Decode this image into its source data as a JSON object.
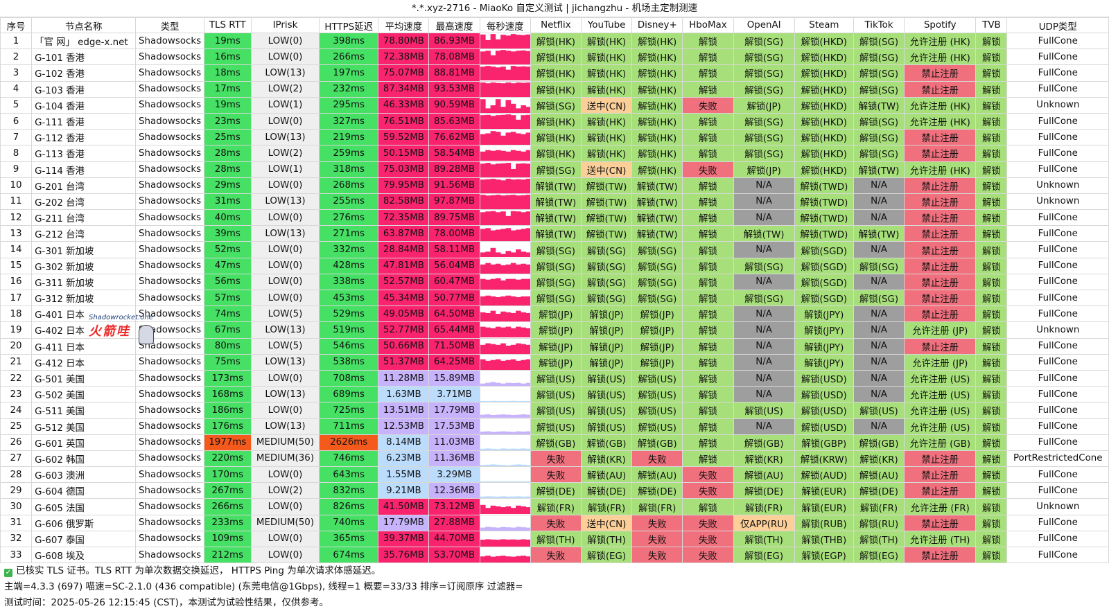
{
  "window": {
    "title": "*.*.xyz-2716 - MiaoKo 自定义测试 | jichangzhu - 机场主定制测速"
  },
  "headers": [
    "序号",
    "节点名称",
    "类型",
    "TLS RTT",
    "IPrisk",
    "HTTPS延迟",
    "平均速度",
    "最高速度",
    "每秒速度",
    "Netflix",
    "YouTube",
    "Disney+",
    "HboMax",
    "OpenAI",
    "Steam",
    "TikTok",
    "Spotify",
    "TVB",
    "UDP类型"
  ],
  "rows": [
    [
      "1",
      "「官 网」 edge-x.net",
      "Shadowsocks",
      "19ms",
      "LOW(0)",
      "398ms",
      "78.80MB",
      "86.93MB",
      "",
      "解锁(HK)",
      "解锁(HK)",
      "解锁(HK)",
      "解锁",
      "解锁(SG)",
      "解锁(HKD)",
      "解锁(SG)",
      "允许注册 (HK)",
      "解锁",
      "FullCone"
    ],
    [
      "2",
      "G-101 香港",
      "Shadowsocks",
      "16ms",
      "LOW(0)",
      "266ms",
      "72.38MB",
      "78.08MB",
      "",
      "解锁(HK)",
      "解锁(HK)",
      "解锁(HK)",
      "解锁",
      "解锁(SG)",
      "解锁(HKD)",
      "解锁(SG)",
      "允许注册 (HK)",
      "解锁",
      "FullCone"
    ],
    [
      "3",
      "G-102 香港",
      "Shadowsocks",
      "18ms",
      "LOW(13)",
      "197ms",
      "75.07MB",
      "88.81MB",
      "",
      "解锁(HK)",
      "解锁(HK)",
      "解锁(HK)",
      "解锁",
      "解锁(SG)",
      "解锁(HKD)",
      "解锁(SG)",
      "禁止注册",
      "解锁",
      "FullCone"
    ],
    [
      "4",
      "G-103 香港",
      "Shadowsocks",
      "17ms",
      "LOW(2)",
      "232ms",
      "87.34MB",
      "93.53MB",
      "",
      "解锁(HK)",
      "解锁(HK)",
      "解锁(HK)",
      "解锁",
      "解锁(SG)",
      "解锁(HKD)",
      "解锁(SG)",
      "禁止注册",
      "解锁",
      "FullCone"
    ],
    [
      "5",
      "G-104 香港",
      "Shadowsocks",
      "19ms",
      "LOW(1)",
      "295ms",
      "46.33MB",
      "90.59MB",
      "",
      "解锁(SG)",
      "送中(CN)",
      "解锁(HK)",
      "失败",
      "解锁(JP)",
      "解锁(HKD)",
      "解锁(TW)",
      "允许注册 (HK)",
      "解锁",
      "Unknown"
    ],
    [
      "6",
      "G-111 香港",
      "Shadowsocks",
      "23ms",
      "LOW(0)",
      "327ms",
      "76.51MB",
      "85.63MB",
      "",
      "解锁(HK)",
      "解锁(HK)",
      "解锁(HK)",
      "解锁",
      "解锁(SG)",
      "解锁(HKD)",
      "解锁(SG)",
      "允许注册 (HK)",
      "解锁",
      "FullCone"
    ],
    [
      "7",
      "G-112 香港",
      "Shadowsocks",
      "25ms",
      "LOW(13)",
      "219ms",
      "59.52MB",
      "76.62MB",
      "",
      "解锁(HK)",
      "解锁(HK)",
      "解锁(HK)",
      "解锁",
      "解锁(SG)",
      "解锁(HKD)",
      "解锁(SG)",
      "禁止注册",
      "解锁",
      "FullCone"
    ],
    [
      "8",
      "G-113 香港",
      "Shadowsocks",
      "28ms",
      "LOW(2)",
      "259ms",
      "50.15MB",
      "58.54MB",
      "",
      "解锁(HK)",
      "解锁(HK)",
      "解锁(HK)",
      "解锁",
      "解锁(SG)",
      "解锁(HKD)",
      "解锁(SG)",
      "禁止注册",
      "解锁",
      "FullCone"
    ],
    [
      "9",
      "G-114 香港",
      "Shadowsocks",
      "28ms",
      "LOW(1)",
      "318ms",
      "75.03MB",
      "89.28MB",
      "",
      "解锁(SG)",
      "送中(CN)",
      "解锁(HK)",
      "失败",
      "解锁(JP)",
      "解锁(HKD)",
      "解锁(TW)",
      "允许注册 (HK)",
      "解锁",
      "FullCone"
    ],
    [
      "10",
      "G-201 台湾",
      "Shadowsocks",
      "29ms",
      "LOW(0)",
      "268ms",
      "79.95MB",
      "91.56MB",
      "",
      "解锁(TW)",
      "解锁(TW)",
      "解锁(TW)",
      "解锁",
      "N/A",
      "解锁(TWD)",
      "N/A",
      "禁止注册",
      "解锁",
      "Unknown"
    ],
    [
      "11",
      "G-202 台湾",
      "Shadowsocks",
      "31ms",
      "LOW(13)",
      "255ms",
      "82.58MB",
      "97.87MB",
      "",
      "解锁(TW)",
      "解锁(TW)",
      "解锁(TW)",
      "解锁",
      "N/A",
      "解锁(TWD)",
      "N/A",
      "禁止注册",
      "解锁",
      "Unknown"
    ],
    [
      "12",
      "G-211 台湾",
      "Shadowsocks",
      "40ms",
      "LOW(0)",
      "276ms",
      "72.35MB",
      "89.75MB",
      "",
      "解锁(TW)",
      "解锁(TW)",
      "解锁(TW)",
      "解锁",
      "N/A",
      "解锁(TWD)",
      "N/A",
      "禁止注册",
      "解锁",
      "FullCone"
    ],
    [
      "13",
      "G-212 台湾",
      "Shadowsocks",
      "39ms",
      "LOW(13)",
      "271ms",
      "63.87MB",
      "78.00MB",
      "",
      "解锁(TW)",
      "解锁(TW)",
      "解锁(TW)",
      "解锁",
      "解锁(TW)",
      "解锁(TWD)",
      "解锁(TW)",
      "禁止注册",
      "解锁",
      "FullCone"
    ],
    [
      "14",
      "G-301 新加坡",
      "Shadowsocks",
      "52ms",
      "LOW(0)",
      "332ms",
      "28.84MB",
      "58.11MB",
      "",
      "解锁(SG)",
      "解锁(SG)",
      "解锁(SG)",
      "解锁",
      "N/A",
      "解锁(SGD)",
      "N/A",
      "禁止注册",
      "解锁",
      "FullCone"
    ],
    [
      "15",
      "G-302 新加坡",
      "Shadowsocks",
      "47ms",
      "LOW(0)",
      "428ms",
      "47.81MB",
      "56.04MB",
      "",
      "解锁(SG)",
      "解锁(SG)",
      "解锁(SG)",
      "解锁",
      "解锁(SG)",
      "解锁(SGD)",
      "解锁(SG)",
      "禁止注册",
      "解锁",
      "FullCone"
    ],
    [
      "16",
      "G-311 新加坡",
      "Shadowsocks",
      "56ms",
      "LOW(0)",
      "338ms",
      "52.57MB",
      "60.47MB",
      "",
      "解锁(SG)",
      "解锁(SG)",
      "解锁(SG)",
      "解锁",
      "N/A",
      "解锁(SGD)",
      "N/A",
      "禁止注册",
      "解锁",
      "FullCone"
    ],
    [
      "17",
      "G-312 新加坡",
      "Shadowsocks",
      "57ms",
      "LOW(0)",
      "453ms",
      "45.34MB",
      "50.77MB",
      "",
      "解锁(SG)",
      "解锁(SG)",
      "解锁(SG)",
      "解锁",
      "解锁(SG)",
      "解锁(SGD)",
      "解锁(SG)",
      "禁止注册",
      "解锁",
      "FullCone"
    ],
    [
      "18",
      "G-401 日本",
      "Shadowsocks",
      "74ms",
      "LOW(5)",
      "529ms",
      "49.05MB",
      "64.50MB",
      "",
      "解锁(JP)",
      "解锁(JP)",
      "解锁(JP)",
      "解锁",
      "N/A",
      "解锁(JPY)",
      "N/A",
      "禁止注册",
      "解锁",
      "FullCone"
    ],
    [
      "19",
      "G-402 日本",
      "Shadowsocks",
      "67ms",
      "LOW(13)",
      "519ms",
      "52.77MB",
      "65.44MB",
      "",
      "解锁(JP)",
      "解锁(JP)",
      "解锁(JP)",
      "解锁",
      "N/A",
      "解锁(JPY)",
      "N/A",
      "允许注册 (JP)",
      "解锁",
      "Unknown"
    ],
    [
      "20",
      "G-411 日本",
      "Shadowsocks",
      "80ms",
      "LOW(5)",
      "546ms",
      "50.66MB",
      "71.50MB",
      "",
      "解锁(JP)",
      "解锁(JP)",
      "解锁(JP)",
      "解锁",
      "N/A",
      "解锁(JPY)",
      "N/A",
      "禁止注册",
      "解锁",
      "FullCone"
    ],
    [
      "21",
      "G-412 日本",
      "Shadowsocks",
      "75ms",
      "LOW(13)",
      "538ms",
      "51.37MB",
      "64.25MB",
      "",
      "解锁(JP)",
      "解锁(JP)",
      "解锁(JP)",
      "解锁",
      "N/A",
      "解锁(JPY)",
      "N/A",
      "允许注册 (JP)",
      "解锁",
      "FullCone"
    ],
    [
      "22",
      "G-501 美国",
      "Shadowsocks",
      "173ms",
      "LOW(0)",
      "708ms",
      "11.28MB",
      "15.89MB",
      "",
      "解锁(US)",
      "解锁(US)",
      "解锁(US)",
      "解锁",
      "N/A",
      "解锁(USD)",
      "N/A",
      "允许注册 (US)",
      "解锁",
      "FullCone"
    ],
    [
      "23",
      "G-502 美国",
      "Shadowsocks",
      "168ms",
      "LOW(13)",
      "689ms",
      "1.63MB",
      "3.71MB",
      "",
      "解锁(US)",
      "解锁(US)",
      "解锁(US)",
      "解锁",
      "N/A",
      "解锁(USD)",
      "N/A",
      "允许注册 (US)",
      "解锁",
      "FullCone"
    ],
    [
      "24",
      "G-511 美国",
      "Shadowsocks",
      "186ms",
      "LOW(0)",
      "725ms",
      "13.51MB",
      "17.79MB",
      "",
      "解锁(US)",
      "解锁(US)",
      "解锁(US)",
      "解锁",
      "解锁(US)",
      "解锁(USD)",
      "解锁(US)",
      "允许注册 (US)",
      "解锁",
      "FullCone"
    ],
    [
      "25",
      "G-512 美国",
      "Shadowsocks",
      "176ms",
      "LOW(13)",
      "711ms",
      "12.53MB",
      "17.53MB",
      "",
      "解锁(US)",
      "解锁(US)",
      "解锁(US)",
      "解锁",
      "N/A",
      "解锁(USD)",
      "N/A",
      "允许注册 (US)",
      "解锁",
      "FullCone"
    ],
    [
      "26",
      "G-601 英国",
      "Shadowsocks",
      "1977ms",
      "MEDIUM(50)",
      "2626ms",
      "8.14MB",
      "11.03MB",
      "",
      "解锁(GB)",
      "解锁(GB)",
      "解锁(GB)",
      "解锁",
      "解锁(GB)",
      "解锁(GBP)",
      "解锁(GB)",
      "允许注册 (GB)",
      "解锁",
      "FullCone"
    ],
    [
      "27",
      "G-602 韩国",
      "Shadowsocks",
      "220ms",
      "MEDIUM(36)",
      "746ms",
      "6.23MB",
      "11.36MB",
      "",
      "失败",
      "解锁(KR)",
      "失败",
      "解锁",
      "解锁(KR)",
      "解锁(KRW)",
      "解锁(KR)",
      "禁止注册",
      "解锁",
      "PortRestrictedCone"
    ],
    [
      "28",
      "G-603 澳洲",
      "Shadowsocks",
      "170ms",
      "LOW(0)",
      "643ms",
      "1.55MB",
      "3.29MB",
      "",
      "失败",
      "解锁(AU)",
      "解锁(AU)",
      "失败",
      "解锁(AU)",
      "解锁(AUD)",
      "解锁(AU)",
      "禁止注册",
      "解锁",
      "FullCone"
    ],
    [
      "29",
      "G-604 德国",
      "Shadowsocks",
      "267ms",
      "LOW(2)",
      "832ms",
      "9.21MB",
      "12.36MB",
      "",
      "解锁(DE)",
      "解锁(DE)",
      "解锁(DE)",
      "失败",
      "解锁(DE)",
      "解锁(EUR)",
      "解锁(DE)",
      "禁止注册",
      "解锁",
      "FullCone"
    ],
    [
      "30",
      "G-605 法国",
      "Shadowsocks",
      "266ms",
      "LOW(0)",
      "826ms",
      "41.50MB",
      "73.12MB",
      "",
      "解锁(FR)",
      "解锁(FR)",
      "解锁(FR)",
      "解锁",
      "解锁(FR)",
      "解锁(EUR)",
      "解锁(FR)",
      "允许注册 (FR)",
      "解锁",
      "Unknown"
    ],
    [
      "31",
      "G-606 俄罗斯",
      "Shadowsocks",
      "233ms",
      "MEDIUM(50)",
      "740ms",
      "17.79MB",
      "27.88MB",
      "",
      "失败",
      "送中(CN)",
      "失败",
      "失败",
      "仅APP(RU)",
      "解锁(RUB)",
      "解锁(RU)",
      "禁止注册",
      "解锁",
      "FullCone"
    ],
    [
      "32",
      "G-607 泰国",
      "Shadowsocks",
      "109ms",
      "LOW(0)",
      "365ms",
      "39.37MB",
      "44.70MB",
      "",
      "解锁(TH)",
      "解锁(TH)",
      "失败",
      "失败",
      "解锁(TH)",
      "解锁(THB)",
      "解锁(TH)",
      "允许注册 (TH)",
      "解锁",
      "FullCone"
    ],
    [
      "33",
      "G-608 埃及",
      "Shadowsocks",
      "212ms",
      "LOW(0)",
      "674ms",
      "35.76MB",
      "53.70MB",
      "",
      "失败",
      "解锁(EG)",
      "失败",
      "失败",
      "解锁(EG)",
      "解锁(EGP)",
      "解锁(EG)",
      "禁止注册",
      "解锁",
      "FullCone"
    ]
  ],
  "speed_series": [
    [
      0.92,
      0.55,
      0.95,
      0.6,
      0.9,
      0.85,
      0.95,
      0.9,
      0.88,
      0.92
    ],
    [
      0.85,
      0.9,
      0.6,
      0.9,
      0.95,
      0.9,
      0.85,
      0.9,
      0.92,
      0.88
    ],
    [
      0.9,
      0.95,
      0.9,
      0.85,
      0.9,
      0.7,
      0.95,
      0.9,
      0.92,
      0.9
    ],
    [
      0.95,
      0.9,
      0.95,
      0.92,
      0.9,
      0.95,
      0.9,
      0.95,
      0.93,
      0.95
    ],
    [
      0.9,
      0.3,
      0.5,
      0.9,
      0.4,
      0.85,
      0.6,
      0.3,
      0.5,
      0.4
    ],
    [
      0.9,
      0.92,
      0.85,
      0.9,
      0.92,
      0.95,
      0.9,
      0.6,
      0.9,
      0.92
    ],
    [
      0.7,
      0.75,
      0.9,
      0.85,
      0.6,
      0.8,
      0.85,
      0.75,
      0.7,
      0.8
    ],
    [
      0.6,
      0.7,
      0.65,
      0.7,
      0.65,
      0.6,
      0.7,
      0.65,
      0.6,
      0.7
    ],
    [
      0.9,
      0.95,
      0.85,
      0.9,
      0.92,
      0.95,
      0.55,
      0.9,
      0.92,
      0.9
    ],
    [
      0.9,
      0.92,
      0.95,
      0.9,
      0.85,
      0.95,
      0.9,
      0.92,
      0.9,
      0.95
    ],
    [
      0.95,
      0.9,
      0.92,
      0.95,
      0.9,
      0.93,
      0.95,
      0.9,
      0.92,
      0.95
    ],
    [
      0.85,
      0.9,
      0.92,
      0.85,
      0.9,
      0.6,
      0.92,
      0.9,
      0.85,
      0.9
    ],
    [
      0.8,
      0.85,
      0.7,
      0.75,
      0.8,
      0.85,
      0.7,
      0.75,
      0.8,
      0.85
    ],
    [
      0.3,
      0.35,
      0.6,
      0.3,
      0.2,
      0.4,
      0.3,
      0.5,
      0.35,
      0.3
    ],
    [
      0.6,
      0.7,
      0.6,
      0.65,
      0.55,
      0.6,
      0.7,
      0.6,
      0.65,
      0.6
    ],
    [
      0.7,
      0.65,
      0.7,
      0.75,
      0.6,
      0.7,
      0.7,
      0.65,
      0.7,
      0.7
    ],
    [
      0.6,
      0.65,
      0.6,
      0.55,
      0.6,
      0.65,
      0.6,
      0.55,
      0.6,
      0.6
    ],
    [
      0.6,
      0.55,
      0.7,
      0.5,
      0.65,
      0.6,
      0.55,
      0.7,
      0.6,
      0.55
    ],
    [
      0.7,
      0.65,
      0.6,
      0.7,
      0.65,
      0.7,
      0.6,
      0.7,
      0.65,
      0.6
    ],
    [
      0.6,
      0.7,
      0.65,
      0.6,
      0.7,
      0.55,
      0.6,
      0.7,
      0.65,
      0.6
    ],
    [
      0.7,
      0.6,
      0.65,
      0.7,
      0.6,
      0.65,
      0.7,
      0.6,
      0.65,
      0.7
    ],
    [
      0.15,
      0.2,
      0.25,
      0.2,
      0.15,
      0.2,
      0.18,
      0.2,
      0.15,
      0.2
    ],
    [
      0.05,
      0.04,
      0.06,
      0.05,
      0.04,
      0.05,
      0.06,
      0.04,
      0.05,
      0.04
    ],
    [
      0.2,
      0.22,
      0.18,
      0.2,
      0.22,
      0.2,
      0.18,
      0.2,
      0.22,
      0.2
    ],
    [
      0.18,
      0.2,
      0.16,
      0.18,
      0.2,
      0.18,
      0.16,
      0.2,
      0.18,
      0.2
    ],
    [
      0.1,
      0.12,
      0.1,
      0.08,
      0.12,
      0.1,
      0.11,
      0.1,
      0.12,
      0.1
    ],
    [
      0.08,
      0.1,
      0.12,
      0.1,
      0.08,
      0.06,
      0.1,
      0.12,
      0.1,
      0.08
    ],
    [
      0.03,
      0.04,
      0.03,
      0.02,
      0.04,
      0.03,
      0.04,
      0.03,
      0.02,
      0.04
    ],
    [
      0.1,
      0.12,
      0.11,
      0.1,
      0.12,
      0.1,
      0.11,
      0.12,
      0.1,
      0.11
    ],
    [
      0.6,
      0.4,
      0.55,
      0.5,
      0.45,
      0.5,
      0.4,
      0.55,
      0.5,
      0.45
    ],
    [
      0.2,
      0.25,
      0.22,
      0.2,
      0.24,
      0.22,
      0.2,
      0.25,
      0.22,
      0.2
    ],
    [
      0.45,
      0.48,
      0.46,
      0.45,
      0.48,
      0.46,
      0.47,
      0.45,
      0.48,
      0.46
    ],
    [
      0.4,
      0.45,
      0.38,
      0.42,
      0.45,
      0.4,
      0.38,
      0.42,
      0.45,
      0.4
    ]
  ],
  "footer": {
    "line1": "已核实 TLS 证书。TLS RTT 为单次数据交换延迟， HTTPS Ping 为单次请求体感延迟。",
    "line2": "主端=4.3.3 (697) 喵速=SC-2.1.0 (436 compatible) (东莞电信@1Gbps), 线程=1 概要=33/33 排序=订阅原序 过滤器=",
    "line3": "测试时间：2025-05-26 12:15:45 (CST)，本测试为试验性结果，仅供参考。"
  },
  "watermark": {
    "brand": "Shadowrocket.one",
    "cn": "火箭哇"
  },
  "colors": {
    "fast_green": "#46e065",
    "slow_orange": "#f55a1d",
    "high_pink": "#f9236e",
    "mid_purple": "#c6b3fb",
    "low_blue": "#bcdcfd",
    "unlock_green": "#a7e07a",
    "fail_red": "#f0707d",
    "cn_peach": "#fccf98",
    "na_gray": "#9e9e9e"
  }
}
